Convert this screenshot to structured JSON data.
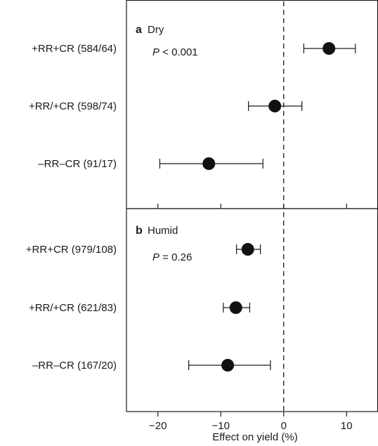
{
  "chart_data": {
    "type": "scatter",
    "subtype": "forest-plot",
    "xlabel": "Effect on yield (%)",
    "xlim": [
      -25,
      15
    ],
    "xticks": [
      -20,
      -10,
      0,
      10
    ],
    "x_tick_labels": [
      "−20",
      "−10",
      "0",
      "10"
    ],
    "reference_line": {
      "x": 0,
      "style": "dashed"
    },
    "panels": [
      {
        "letter": "a",
        "name": "Dry",
        "p_symbol": "P",
        "p_rest": " < 0.001",
        "rows": [
          {
            "label": "+RR+CR (584/64)",
            "estimate": 7.2,
            "ci_low": 3.2,
            "ci_high": 11.4
          },
          {
            "label": "+RR/+CR (598/74)",
            "estimate": -1.4,
            "ci_low": -5.6,
            "ci_high": 2.9
          },
          {
            "label": "–RR–CR (91/17)",
            "estimate": -11.9,
            "ci_low": -19.7,
            "ci_high": -3.3
          }
        ]
      },
      {
        "letter": "b",
        "name": "Humid",
        "p_symbol": "P",
        "p_rest": " = 0.26",
        "rows": [
          {
            "label": "+RR+CR (979/108)",
            "estimate": -5.7,
            "ci_low": -7.5,
            "ci_high": -3.7
          },
          {
            "label": "+RR/+CR (621/83)",
            "estimate": -7.6,
            "ci_low": -9.6,
            "ci_high": -5.4
          },
          {
            "label": "–RR–CR (167/20)",
            "estimate": -8.9,
            "ci_low": -15.1,
            "ci_high": -2.1
          }
        ]
      }
    ]
  }
}
